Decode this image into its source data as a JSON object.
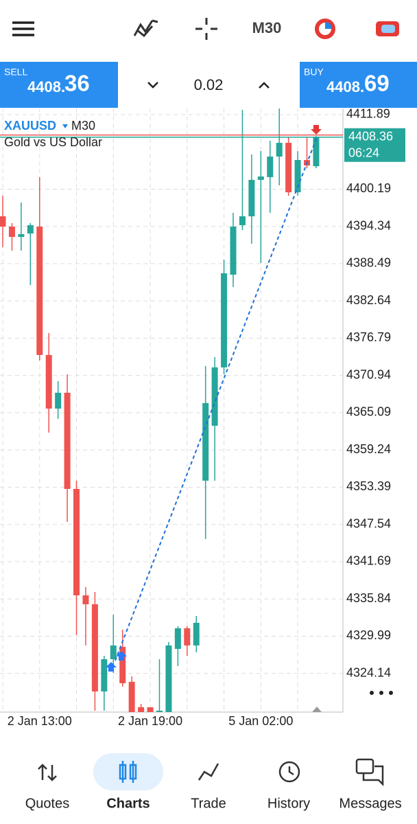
{
  "toolbar": {
    "timeframe": "M30"
  },
  "quote_bar": {
    "sell": {
      "label": "SELL",
      "price_main": "4408.",
      "price_pips": "36"
    },
    "volume": "0.02",
    "buy": {
      "label": "BUY",
      "price_main": "4408.",
      "price_pips": "69"
    }
  },
  "chart_data": {
    "type": "candlestick",
    "symbol": "XAUUSD",
    "timeframe": "M30",
    "description": "Gold vs US Dollar",
    "categories": [
      null,
      null,
      null,
      null,
      "2 Jan 13:00",
      null,
      null,
      null,
      null,
      null,
      null,
      null,
      null,
      null,
      null,
      null,
      "2 Jan 19:00",
      null,
      null,
      null,
      null,
      null,
      null,
      null,
      null,
      null,
      null,
      null,
      "5 Jan 02:00",
      null,
      null,
      null,
      null,
      null,
      null
    ],
    "open": [
      4395.93,
      4394.31,
      4392.69,
      4393.23,
      4394.31,
      4374.15,
      4365.73,
      4368.22,
      4353.12,
      4336.4,
      4335.0,
      4321.31,
      4326.37,
      4328.31,
      4322.82,
      4318.83,
      4318.83,
      4317.75,
      4317.75,
      4327.99,
      4331.23,
      4328.53,
      4354.41,
      4363.04,
      4372.2,
      4386.76,
      4394.53,
      4395.93,
      4401.65,
      4402.08,
      4405.31,
      4407.47,
      4399.7,
      4404.77,
      4403.8
    ],
    "high": [
      4399.16,
      4394.85,
      4398.09,
      4394.85,
      4402.08,
      4377.6,
      4370.05,
      4371.12,
      4354.41,
      4337.7,
      4336.94,
      4326.91,
      4333.38,
      4331.01,
      4323.68,
      4319.36,
      4318.83,
      4326.37,
      4329.07,
      4331.55,
      4331.55,
      4333.17,
      4372.42,
      4373.82,
      4389.14,
      4396.47,
      4412.64,
      4405.64,
      4406.17,
      4407.79,
      4412.86,
      4408.33,
      4406.17,
      4408.33,
      4408.55
    ],
    "low": [
      4391.08,
      4390.54,
      4390.54,
      4385.14,
      4373.28,
      4361.96,
      4364.12,
      4347.94,
      4330.15,
      4328.53,
      4318.29,
      4318.29,
      4324.22,
      4322.06,
      4317.75,
      4317.75,
      4317.75,
      4317.75,
      4317.75,
      4325.29,
      4326.91,
      4327.45,
      4345.25,
      4354.41,
      4371.12,
      4384.82,
      4393.77,
      4391.62,
      4388.6,
      4396.47,
      4400.78,
      4399.16,
      4399.16,
      4403.48,
      4403.48
    ],
    "close": [
      4394.31,
      4392.69,
      4393.13,
      4394.53,
      4374.15,
      4365.73,
      4368.22,
      4353.12,
      4336.4,
      4335.0,
      4321.31,
      4326.37,
      4328.53,
      4322.6,
      4317.75,
      4317.75,
      4317.75,
      4318.29,
      4328.53,
      4331.23,
      4328.53,
      4332.09,
      4366.6,
      4372.2,
      4386.98,
      4394.31,
      4395.93,
      4401.65,
      4402.18,
      4405.31,
      4407.47,
      4399.7,
      4404.77,
      4403.91,
      4408.36
    ],
    "up_color": "#26a69a",
    "down_color": "#ef5350",
    "ylim": [
      4318.07,
      4412.86
    ],
    "yticks": [
      4411.89,
      4400.19,
      4394.34,
      4388.49,
      4382.64,
      4376.79,
      4370.94,
      4365.09,
      4359.24,
      4353.39,
      4347.54,
      4341.69,
      4335.84,
      4329.99,
      4324.14
    ],
    "grid": true,
    "bid": 4408.36,
    "ask": 4408.69,
    "timer": "06:24"
  },
  "nav": [
    {
      "label": "Quotes"
    },
    {
      "label": "Charts",
      "active": true
    },
    {
      "label": "Trade"
    },
    {
      "label": "History"
    },
    {
      "label": "Messages"
    }
  ]
}
